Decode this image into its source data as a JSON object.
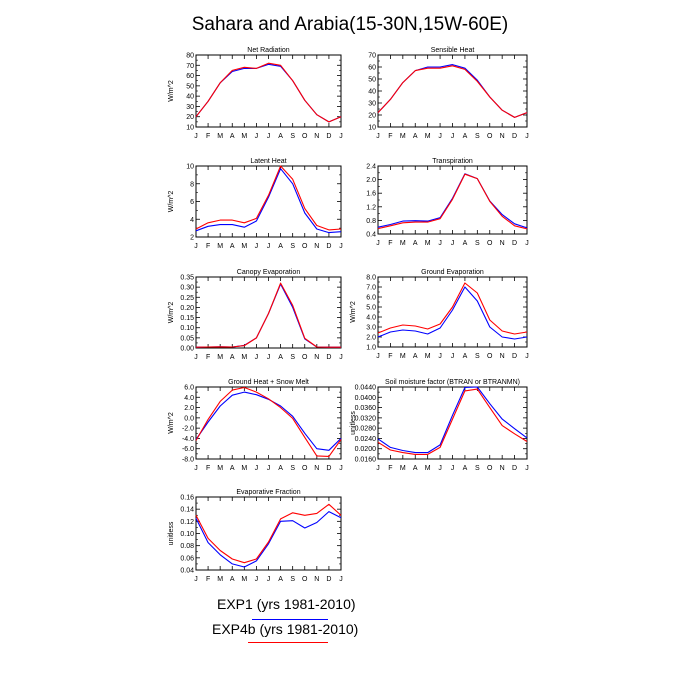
{
  "title": "Sahara and Arabia(15-30N,15W-60E)",
  "colors": {
    "exp1": "#0000ff",
    "exp4b": "#ff0000",
    "axis": "#000000"
  },
  "legend": [
    {
      "label": "EXP1 (yrs 1981-2010)",
      "color": "#0000ff"
    },
    {
      "label": "EXP4b (yrs 1981-2010)",
      "color": "#ff0000"
    }
  ],
  "chart_data": [
    {
      "type": "line",
      "title": "Net Radiation",
      "ylabel": "W/m^2",
      "x": [
        "J",
        "F",
        "M",
        "A",
        "M",
        "J",
        "J",
        "A",
        "S",
        "O",
        "N",
        "D",
        "J"
      ],
      "ylim": [
        10,
        80
      ],
      "yticks": [
        "10",
        "20",
        "30",
        "40",
        "50",
        "60",
        "70",
        "80"
      ],
      "series": [
        {
          "name": "EXP1 (yrs 1981-2010)",
          "values": [
            20,
            35,
            53,
            64,
            67,
            67,
            71,
            69,
            55,
            36,
            22,
            15,
            20
          ]
        },
        {
          "name": "EXP4b (yrs 1981-2010)",
          "values": [
            20,
            35,
            53,
            65,
            68,
            67,
            72,
            70,
            55,
            36,
            22,
            15,
            20
          ]
        }
      ]
    },
    {
      "type": "line",
      "title": "Sensible Heat",
      "ylabel": "",
      "x": [
        "J",
        "F",
        "M",
        "A",
        "M",
        "J",
        "J",
        "A",
        "S",
        "O",
        "N",
        "D",
        "J"
      ],
      "ylim": [
        10,
        70
      ],
      "yticks": [
        "10",
        "20",
        "30",
        "40",
        "50",
        "60",
        "70"
      ],
      "series": [
        {
          "name": "EXP1 (yrs 1981-2010)",
          "values": [
            22,
            33,
            47,
            57,
            60,
            60,
            62,
            59,
            49,
            35,
            24,
            18,
            22
          ]
        },
        {
          "name": "EXP4b (yrs 1981-2010)",
          "values": [
            22,
            33,
            47,
            57,
            59,
            59,
            61,
            58,
            48,
            35,
            24,
            18,
            22
          ]
        }
      ]
    },
    {
      "type": "line",
      "title": "Latent Heat",
      "ylabel": "W/m^2",
      "x": [
        "J",
        "F",
        "M",
        "A",
        "M",
        "J",
        "J",
        "A",
        "S",
        "O",
        "N",
        "D",
        "J"
      ],
      "ylim": [
        2,
        10
      ],
      "yticks": [
        "2",
        "4",
        "6",
        "8",
        "10"
      ],
      "series": [
        {
          "name": "EXP1 (yrs 1981-2010)",
          "values": [
            2.7,
            3.2,
            3.4,
            3.4,
            3.1,
            3.8,
            6.5,
            9.7,
            8.0,
            4.7,
            2.9,
            2.5,
            2.6
          ]
        },
        {
          "name": "EXP4b (yrs 1981-2010)",
          "values": [
            2.9,
            3.6,
            3.9,
            3.9,
            3.6,
            4.1,
            6.7,
            10.0,
            8.5,
            5.2,
            3.3,
            2.8,
            2.9
          ]
        }
      ]
    },
    {
      "type": "line",
      "title": "Transpiration",
      "ylabel": "",
      "x": [
        "J",
        "F",
        "M",
        "A",
        "M",
        "J",
        "J",
        "A",
        "S",
        "O",
        "N",
        "D",
        "J"
      ],
      "ylim": [
        0.4,
        2.4
      ],
      "yticks": [
        "0.4",
        "0.8",
        "1.2",
        "1.6",
        "2.0",
        "2.4"
      ],
      "series": [
        {
          "name": "EXP1 (yrs 1981-2010)",
          "values": [
            0.6,
            0.68,
            0.78,
            0.79,
            0.78,
            0.88,
            1.45,
            2.17,
            2.03,
            1.37,
            0.97,
            0.7,
            0.58
          ]
        },
        {
          "name": "EXP4b (yrs 1981-2010)",
          "values": [
            0.56,
            0.64,
            0.73,
            0.75,
            0.75,
            0.85,
            1.42,
            2.16,
            2.03,
            1.36,
            0.92,
            0.64,
            0.55
          ]
        }
      ]
    },
    {
      "type": "line",
      "title": "Canopy Evaporation",
      "ylabel": "W/m^2",
      "x": [
        "J",
        "F",
        "M",
        "A",
        "M",
        "J",
        "J",
        "A",
        "S",
        "O",
        "N",
        "D",
        "J"
      ],
      "ylim": [
        0,
        0.35
      ],
      "yticks": [
        "0.00",
        "0.05",
        "0.10",
        "0.15",
        "0.20",
        "0.25",
        "0.30",
        "0.35"
      ],
      "series": [
        {
          "name": "EXP1 (yrs 1981-2010)",
          "values": [
            0.004,
            0.005,
            0.006,
            0.005,
            0.013,
            0.05,
            0.17,
            0.315,
            0.2,
            0.045,
            0.005,
            0.004,
            0.004
          ]
        },
        {
          "name": "EXP4b (yrs 1981-2010)",
          "values": [
            0.004,
            0.005,
            0.006,
            0.005,
            0.012,
            0.05,
            0.17,
            0.32,
            0.21,
            0.048,
            0.005,
            0.004,
            0.004
          ]
        }
      ]
    },
    {
      "type": "line",
      "title": "Ground Evaporation",
      "ylabel": "W/m^2",
      "x": [
        "J",
        "F",
        "M",
        "A",
        "M",
        "J",
        "J",
        "A",
        "S",
        "O",
        "N",
        "D",
        "J"
      ],
      "ylim": [
        1.0,
        8.0
      ],
      "yticks": [
        "1.0",
        "2.0",
        "3.0",
        "4.0",
        "5.0",
        "6.0",
        "7.0",
        "8.0"
      ],
      "series": [
        {
          "name": "EXP1 (yrs 1981-2010)",
          "values": [
            2.0,
            2.5,
            2.7,
            2.6,
            2.3,
            2.9,
            4.7,
            7.0,
            5.6,
            3.0,
            2.0,
            1.8,
            2.0
          ]
        },
        {
          "name": "EXP4b (yrs 1981-2010)",
          "values": [
            2.4,
            2.9,
            3.2,
            3.1,
            2.8,
            3.3,
            5.0,
            7.4,
            6.4,
            3.7,
            2.6,
            2.3,
            2.5
          ]
        }
      ]
    },
    {
      "type": "line",
      "title": "Ground Heat + Snow Melt",
      "ylabel": "W/m^2",
      "x": [
        "J",
        "F",
        "M",
        "A",
        "M",
        "J",
        "J",
        "A",
        "S",
        "O",
        "N",
        "D",
        "J"
      ],
      "ylim": [
        -8,
        6
      ],
      "yticks": [
        "-8.0",
        "-6.0",
        "-4.0",
        "-2.0",
        "0.0",
        "2.0",
        "4.0",
        "6.0"
      ],
      "series": [
        {
          "name": "EXP1 (yrs 1981-2010)",
          "values": [
            -4.2,
            -0.8,
            2.3,
            4.4,
            5.0,
            4.5,
            3.6,
            2.3,
            0.3,
            -3.0,
            -6.0,
            -6.3,
            -4.0
          ]
        },
        {
          "name": "EXP4b (yrs 1981-2010)",
          "values": [
            -4.4,
            -0.3,
            3.2,
            5.4,
            5.9,
            5.0,
            3.7,
            2.0,
            -0.1,
            -3.8,
            -7.4,
            -7.5,
            -4.2
          ]
        }
      ]
    },
    {
      "type": "line",
      "title": "Soil moisture factor (BTRAN or BTRANMN)",
      "ylabel": "unitless",
      "x": [
        "J",
        "F",
        "M",
        "A",
        "M",
        "J",
        "J",
        "A",
        "S",
        "O",
        "N",
        "D",
        "J"
      ],
      "ylim": [
        0.016,
        0.044
      ],
      "yticks": [
        "0.0160",
        "0.0200",
        "0.0240",
        "0.0280",
        "0.0320",
        "0.0360",
        "0.0400",
        "0.0440"
      ],
      "series": [
        {
          "name": "EXP1 (yrs 1981-2010)",
          "values": [
            0.0238,
            0.0205,
            0.0193,
            0.0185,
            0.0185,
            0.0215,
            0.033,
            0.0438,
            0.044,
            0.0375,
            0.0315,
            0.0278,
            0.0242
          ]
        },
        {
          "name": "EXP4b (yrs 1981-2010)",
          "values": [
            0.0225,
            0.0195,
            0.0185,
            0.0178,
            0.0178,
            0.0205,
            0.0315,
            0.0425,
            0.0432,
            0.036,
            0.029,
            0.0258,
            0.0228
          ]
        }
      ]
    },
    {
      "type": "line",
      "title": "Evaporative Fraction",
      "ylabel": "unitless",
      "x": [
        "J",
        "F",
        "M",
        "A",
        "M",
        "J",
        "J",
        "A",
        "S",
        "O",
        "N",
        "D",
        "J"
      ],
      "ylim": [
        0.04,
        0.16
      ],
      "yticks": [
        "0.04",
        "0.06",
        "0.08",
        "0.10",
        "0.12",
        "0.14",
        "0.16"
      ],
      "series": [
        {
          "name": "EXP1 (yrs 1981-2010)",
          "values": [
            0.125,
            0.085,
            0.065,
            0.05,
            0.045,
            0.055,
            0.083,
            0.12,
            0.121,
            0.109,
            0.118,
            0.136,
            0.126
          ]
        },
        {
          "name": "EXP4b (yrs 1981-2010)",
          "values": [
            0.13,
            0.092,
            0.072,
            0.058,
            0.052,
            0.058,
            0.086,
            0.124,
            0.134,
            0.13,
            0.133,
            0.148,
            0.13
          ]
        }
      ]
    }
  ]
}
